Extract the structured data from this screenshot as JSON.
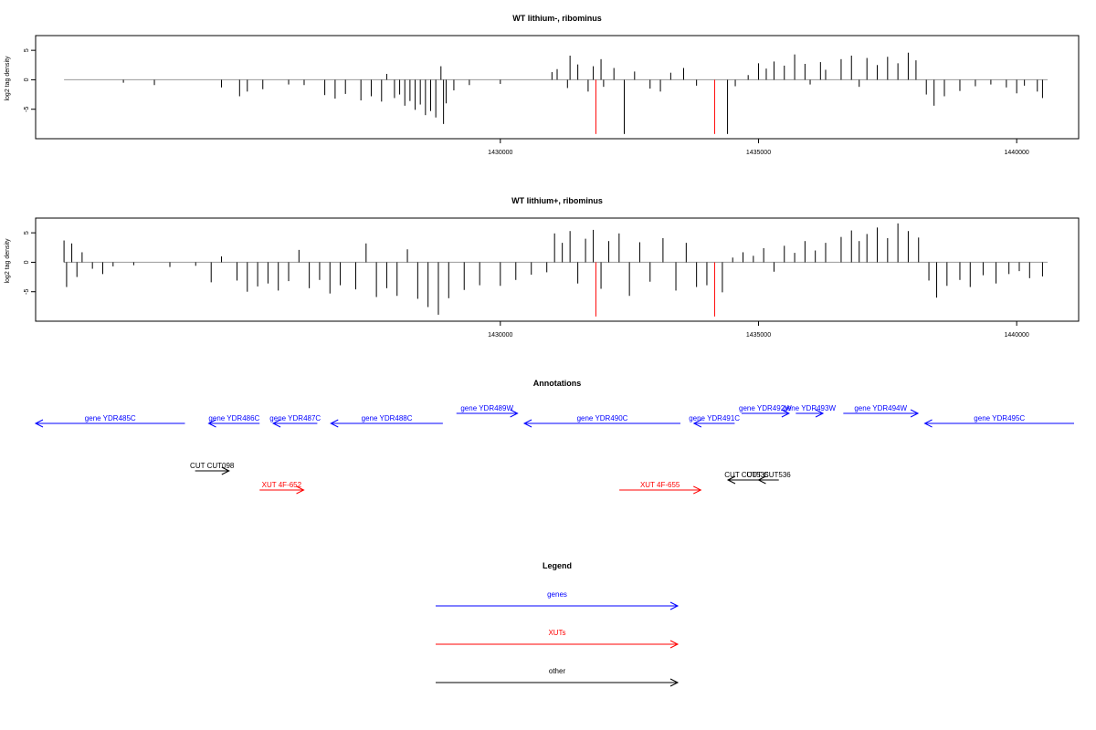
{
  "chart_data": [
    {
      "type": "bar",
      "title": "WT lithium-, ribominus",
      "ylabel": "log2 tag density",
      "xlim": [
        1421000,
        1441200
      ],
      "ylim": [
        -10,
        7.5
      ],
      "xticks": [
        1430000,
        1435000,
        1440000
      ],
      "yticks": [
        -5,
        0,
        5
      ],
      "series": [
        {
          "color": "#000000",
          "bars": [
            [
              1422700,
              -0.5
            ],
            [
              1423300,
              -0.9
            ],
            [
              1424600,
              -1.3
            ],
            [
              1424950,
              -2.8
            ],
            [
              1425100,
              -2.0
            ],
            [
              1425400,
              -1.6
            ],
            [
              1425900,
              -0.8
            ],
            [
              1426200,
              -0.9
            ],
            [
              1426600,
              -2.6
            ],
            [
              1426800,
              -3.2
            ],
            [
              1427000,
              -2.4
            ],
            [
              1427300,
              -3.5
            ],
            [
              1427500,
              -2.8
            ],
            [
              1427700,
              -3.7
            ],
            [
              1427800,
              1.0
            ],
            [
              1427950,
              -3.1
            ],
            [
              1428050,
              -2.5
            ],
            [
              1428150,
              -4.4
            ],
            [
              1428250,
              -3.6
            ],
            [
              1428350,
              -5.1
            ],
            [
              1428450,
              -4.2
            ],
            [
              1428550,
              -6.0
            ],
            [
              1428650,
              -5.3
            ],
            [
              1428750,
              -6.4
            ],
            [
              1428850,
              2.3
            ],
            [
              1428900,
              -7.5
            ],
            [
              1428950,
              -4.0
            ],
            [
              1429100,
              -1.8
            ],
            [
              1429400,
              -0.9
            ],
            [
              1430000,
              -0.7
            ],
            [
              1431000,
              1.3
            ],
            [
              1431100,
              1.8
            ],
            [
              1431300,
              -1.4
            ],
            [
              1431350,
              4.1
            ],
            [
              1431500,
              2.6
            ],
            [
              1431700,
              -2.0
            ],
            [
              1431800,
              2.3
            ],
            [
              1431950,
              3.5
            ],
            [
              1432000,
              -1.2
            ],
            [
              1432200,
              2.0
            ],
            [
              1432400,
              -9.2
            ],
            [
              1432600,
              1.4
            ],
            [
              1432900,
              -1.5
            ],
            [
              1433100,
              -2.0
            ],
            [
              1433300,
              1.2
            ],
            [
              1433550,
              2.0
            ],
            [
              1433800,
              -1.0
            ],
            [
              1434400,
              -9.2
            ],
            [
              1434550,
              -1.1
            ],
            [
              1434800,
              0.8
            ],
            [
              1435000,
              2.8
            ],
            [
              1435150,
              1.9
            ],
            [
              1435300,
              3.1
            ],
            [
              1435500,
              2.4
            ],
            [
              1435700,
              4.3
            ],
            [
              1435900,
              2.7
            ],
            [
              1436000,
              -0.8
            ],
            [
              1436200,
              3.0
            ],
            [
              1436300,
              1.7
            ],
            [
              1436600,
              3.5
            ],
            [
              1436800,
              4.1
            ],
            [
              1436950,
              -1.2
            ],
            [
              1437100,
              3.7
            ],
            [
              1437300,
              2.5
            ],
            [
              1437500,
              3.9
            ],
            [
              1437700,
              2.8
            ],
            [
              1437900,
              4.6
            ],
            [
              1438050,
              3.3
            ],
            [
              1438250,
              -2.5
            ],
            [
              1438400,
              -4.4
            ],
            [
              1438600,
              -2.8
            ],
            [
              1438900,
              -1.9
            ],
            [
              1439200,
              -1.1
            ],
            [
              1439500,
              -0.8
            ],
            [
              1439800,
              -1.3
            ],
            [
              1440000,
              -2.3
            ],
            [
              1440150,
              -1.0
            ],
            [
              1440400,
              -2.0
            ],
            [
              1440500,
              -3.1
            ]
          ]
        },
        {
          "color": "#ff0000",
          "bars": [
            [
              1431850,
              -9.2
            ],
            [
              1434150,
              -9.2
            ]
          ]
        }
      ]
    },
    {
      "type": "bar",
      "title": "WT lithium+, ribominus",
      "ylabel": "log2 tag density",
      "xlim": [
        1421000,
        1441200
      ],
      "ylim": [
        -10,
        7.5
      ],
      "xticks": [
        1430000,
        1435000,
        1440000
      ],
      "yticks": [
        -5,
        0,
        5
      ],
      "series": [
        {
          "color": "#000000",
          "bars": [
            [
              1421550,
              3.7
            ],
            [
              1421600,
              -4.2
            ],
            [
              1421700,
              3.2
            ],
            [
              1421800,
              -2.5
            ],
            [
              1421900,
              1.7
            ],
            [
              1422100,
              -1.1
            ],
            [
              1422300,
              -2.0
            ],
            [
              1422500,
              -0.7
            ],
            [
              1422900,
              -0.5
            ],
            [
              1423600,
              -0.8
            ],
            [
              1424100,
              -0.6
            ],
            [
              1424400,
              -3.4
            ],
            [
              1424600,
              1.0
            ],
            [
              1424900,
              -3.1
            ],
            [
              1425100,
              -5.0
            ],
            [
              1425300,
              -4.1
            ],
            [
              1425500,
              -3.6
            ],
            [
              1425700,
              -4.8
            ],
            [
              1425900,
              -3.2
            ],
            [
              1426100,
              2.1
            ],
            [
              1426300,
              -4.4
            ],
            [
              1426500,
              -3.0
            ],
            [
              1426700,
              -5.3
            ],
            [
              1426900,
              -3.9
            ],
            [
              1427200,
              -4.6
            ],
            [
              1427400,
              3.2
            ],
            [
              1427600,
              -5.9
            ],
            [
              1427800,
              -4.4
            ],
            [
              1428000,
              -5.7
            ],
            [
              1428200,
              2.2
            ],
            [
              1428400,
              -6.2
            ],
            [
              1428600,
              -7.6
            ],
            [
              1428800,
              -8.9
            ],
            [
              1429000,
              -6.1
            ],
            [
              1429300,
              -4.7
            ],
            [
              1429600,
              -3.9
            ],
            [
              1430000,
              -4.0
            ],
            [
              1430300,
              -3.0
            ],
            [
              1430600,
              -2.1
            ],
            [
              1430900,
              -1.7
            ],
            [
              1431050,
              4.9
            ],
            [
              1431200,
              3.3
            ],
            [
              1431350,
              5.3
            ],
            [
              1431500,
              -3.6
            ],
            [
              1431650,
              4.0
            ],
            [
              1431800,
              5.5
            ],
            [
              1431950,
              -4.5
            ],
            [
              1432100,
              3.6
            ],
            [
              1432300,
              4.9
            ],
            [
              1432500,
              -5.7
            ],
            [
              1432700,
              3.4
            ],
            [
              1432900,
              -3.3
            ],
            [
              1433150,
              4.1
            ],
            [
              1433400,
              -4.8
            ],
            [
              1433600,
              3.3
            ],
            [
              1433800,
              -4.2
            ],
            [
              1434000,
              -3.9
            ],
            [
              1434300,
              -5.1
            ],
            [
              1434500,
              0.8
            ],
            [
              1434700,
              1.7
            ],
            [
              1434900,
              1.1
            ],
            [
              1435100,
              2.4
            ],
            [
              1435300,
              -1.6
            ],
            [
              1435500,
              2.8
            ],
            [
              1435700,
              1.6
            ],
            [
              1435900,
              3.6
            ],
            [
              1436100,
              2.0
            ],
            [
              1436300,
              3.3
            ],
            [
              1436600,
              4.3
            ],
            [
              1436800,
              5.4
            ],
            [
              1436950,
              3.6
            ],
            [
              1437100,
              4.8
            ],
            [
              1437300,
              5.9
            ],
            [
              1437500,
              4.1
            ],
            [
              1437700,
              6.6
            ],
            [
              1437900,
              5.3
            ],
            [
              1438100,
              4.2
            ],
            [
              1438300,
              -3.1
            ],
            [
              1438450,
              -6.0
            ],
            [
              1438650,
              -4.0
            ],
            [
              1438900,
              -3.0
            ],
            [
              1439100,
              -4.2
            ],
            [
              1439350,
              -2.2
            ],
            [
              1439600,
              -3.6
            ],
            [
              1439850,
              -2.0
            ],
            [
              1440050,
              -1.5
            ],
            [
              1440250,
              -2.7
            ],
            [
              1440500,
              -2.4
            ]
          ]
        },
        {
          "color": "#ff0000",
          "bars": [
            [
              1431850,
              -9.2
            ],
            [
              1434150,
              -9.2
            ]
          ]
        }
      ]
    }
  ],
  "annotations": {
    "title": "Annotations",
    "features": [
      {
        "label": "gene YDR485C",
        "color": "#0000ff",
        "dir": "left",
        "start": 1421000,
        "end": 1423200
      },
      {
        "label": "gene YDR486C",
        "color": "#0000ff",
        "dir": "left",
        "start": 1423550,
        "end": 1424300
      },
      {
        "label": "gene YDR487C",
        "color": "#0000ff",
        "dir": "left",
        "start": 1424500,
        "end": 1425150
      },
      {
        "label": "gene YDR488C",
        "color": "#0000ff",
        "dir": "left",
        "start": 1425350,
        "end": 1427000
      },
      {
        "label": "gene YDR489W",
        "color": "#0000ff",
        "dir": "right",
        "start": 1427200,
        "end": 1428100
      },
      {
        "label": "gene YDR490C",
        "color": "#0000ff",
        "dir": "left",
        "start": 1428200,
        "end": 1430500
      },
      {
        "label": "gene YDR491C",
        "color": "#0000ff",
        "dir": "left",
        "start": 1430700,
        "end": 1431300
      },
      {
        "label": "gene YDR492W",
        "color": "#0000ff",
        "dir": "right",
        "start": 1431400,
        "end": 1432100
      },
      {
        "label": "gene YDR493W",
        "color": "#0000ff",
        "dir": "right",
        "start": 1432200,
        "end": 1432600
      },
      {
        "label": "gene YDR494W",
        "color": "#0000ff",
        "dir": "right",
        "start": 1432900,
        "end": 1434000
      },
      {
        "label": "gene YDR495C",
        "color": "#0000ff",
        "dir": "left",
        "start": 1434100,
        "end": 1436300
      },
      {
        "label": "CUT CUT098",
        "color": "#000000",
        "dir": "right",
        "start": 1423350,
        "end": 1423850
      },
      {
        "label": "XUT 4F-652",
        "color": "#ff0000",
        "dir": "right",
        "start": 1424300,
        "end": 1424950
      },
      {
        "label": "XUT 4F-655",
        "color": "#ff0000",
        "dir": "right",
        "start": 1429600,
        "end": 1430800
      },
      {
        "label": "CUT CUT535",
        "color": "#000000",
        "dir": "left",
        "start": 1431200,
        "end": 1431750
      },
      {
        "label": "CUT CUT536",
        "color": "#000000",
        "dir": "left",
        "start": 1431650,
        "end": 1431950
      }
    ]
  },
  "legend": {
    "title": "Legend",
    "items": [
      {
        "label": "genes",
        "color": "#0000ff"
      },
      {
        "label": "XUTs",
        "color": "#ff0000"
      },
      {
        "label": "other",
        "color": "#000000"
      }
    ]
  }
}
